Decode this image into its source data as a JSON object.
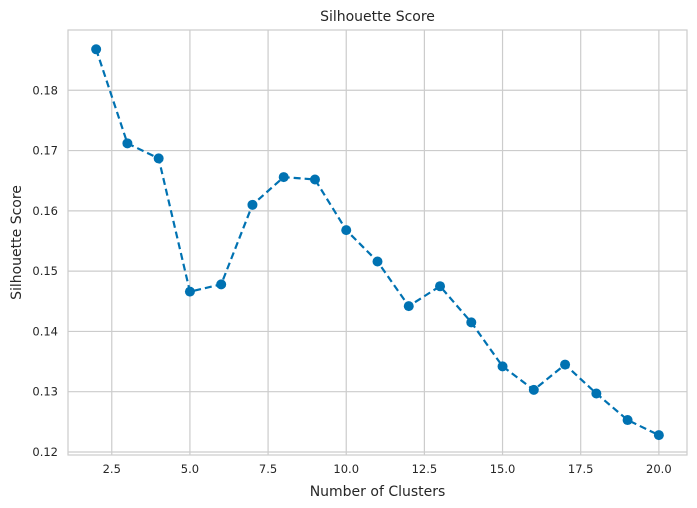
{
  "chart_data": {
    "type": "line",
    "title": "Silhouette Score",
    "xlabel": "Number of Clusters",
    "ylabel": "Silhouette Score",
    "x": [
      2,
      3,
      4,
      5,
      6,
      7,
      8,
      9,
      10,
      11,
      12,
      13,
      14,
      15,
      16,
      17,
      18,
      19,
      20
    ],
    "series": [
      {
        "values": [
          0.1868,
          0.1712,
          0.1687,
          0.1466,
          0.1478,
          0.161,
          0.1656,
          0.1652,
          0.1568,
          0.1516,
          0.1442,
          0.1475,
          0.1415,
          0.1342,
          0.1303,
          0.1345,
          0.1297,
          0.1253,
          0.1228
        ],
        "color": "#0072b2",
        "line_style": "dashed",
        "marker": "circle"
      }
    ],
    "xlim": [
      1.1,
      20.9
    ],
    "ylim": [
      0.1195,
      0.19
    ],
    "xticks": [
      2.5,
      5.0,
      7.5,
      10.0,
      12.5,
      15.0,
      17.5,
      20.0
    ],
    "xtick_labels": [
      "2.5",
      "5.0",
      "7.5",
      "10.0",
      "12.5",
      "15.0",
      "17.5",
      "20.0"
    ],
    "yticks": [
      0.12,
      0.13,
      0.14,
      0.15,
      0.16,
      0.17,
      0.18
    ],
    "ytick_labels": [
      "0.12",
      "0.13",
      "0.14",
      "0.15",
      "0.16",
      "0.17",
      "0.18"
    ],
    "grid": true,
    "legend": "none"
  }
}
